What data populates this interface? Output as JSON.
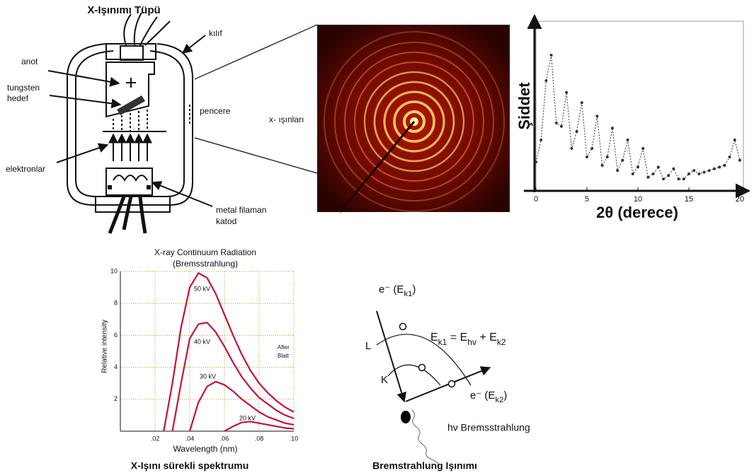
{
  "tube": {
    "title": "X-Işınımı Tüpü",
    "labels": [
      "kılıf",
      "anot",
      "tungsten",
      "hedef",
      "pencere",
      "elektronlar",
      "metal filaman",
      "katod"
    ]
  },
  "diffraction": {
    "label": "x- ışınları"
  },
  "xrd": {
    "type": "scatter",
    "ylabel": "Şiddet",
    "xlabel": "2θ (derece)",
    "color": "#333333",
    "xlim": [
      0,
      20
    ],
    "ylim": [
      0,
      100
    ],
    "xticks": [
      0,
      5,
      10,
      15,
      20
    ],
    "x": [
      0,
      0.5,
      1,
      1.5,
      2,
      2.5,
      3,
      3.5,
      4,
      4.5,
      5,
      5.5,
      6,
      6.5,
      7,
      7.5,
      8,
      8.5,
      9,
      9.5,
      10,
      10.5,
      11,
      11.5,
      12,
      12.5,
      13,
      13.5,
      14,
      14.5,
      15,
      15.5,
      16,
      16.5,
      17,
      17.5,
      18,
      18.5,
      19,
      19.5,
      20
    ],
    "values": [
      17,
      30,
      65,
      80,
      40,
      38,
      58,
      25,
      35,
      52,
      20,
      25,
      44,
      15,
      20,
      37,
      12,
      18,
      30,
      10,
      14,
      25,
      8,
      10,
      14,
      7,
      9,
      13,
      7,
      7,
      10,
      12,
      10,
      11,
      12,
      13,
      14,
      15,
      20,
      30,
      18
    ]
  },
  "continuum": {
    "type": "line",
    "title": [
      "X-ray Continuum Radiation",
      "(Bremsstrahlung)"
    ],
    "xlabel": "Wavelength (nm)",
    "ylabel": "Relative intensity",
    "annotation": [
      "After",
      "Blatt"
    ],
    "xlim": [
      0,
      0.1
    ],
    "ylim": [
      0,
      10
    ],
    "xticks": [
      {
        "value": 0.02,
        "label": ".02"
      },
      {
        "value": 0.04,
        "label": ".04"
      },
      {
        "value": 0.06,
        "label": ".06"
      },
      {
        "value": 0.08,
        "label": ".08"
      },
      {
        "value": 0.1,
        "label": ".10"
      }
    ],
    "yticks": [
      2,
      4,
      6,
      8,
      10
    ],
    "x": [
      0.025,
      0.03,
      0.035,
      0.04,
      0.045,
      0.05,
      0.055,
      0.06,
      0.065,
      0.07,
      0.075,
      0.08,
      0.085,
      0.09,
      0.095,
      0.1
    ],
    "series": [
      {
        "name": "50 kV",
        "color": "#c0143c",
        "values": [
          0,
          3,
          6.5,
          9,
          9.9,
          9.6,
          8.6,
          7.3,
          6,
          4.8,
          3.8,
          3,
          2.4,
          1.9,
          1.5,
          1.2
        ]
      },
      {
        "name": "40 kV",
        "color": "#c0143c",
        "values": [
          null,
          0,
          3,
          5.8,
          6.7,
          6.8,
          6.2,
          5.3,
          4.3,
          3.4,
          2.7,
          2.1,
          1.7,
          1.3,
          1,
          0.8
        ]
      },
      {
        "name": "30 kV",
        "color": "#c0143c",
        "values": [
          null,
          null,
          null,
          0,
          1.8,
          2.8,
          3.1,
          2.9,
          2.5,
          2,
          1.6,
          1.2,
          0.9,
          0.7,
          0.5,
          0.4
        ]
      },
      {
        "name": "20 kV",
        "color": "#c0143c",
        "values": [
          null,
          null,
          null,
          null,
          null,
          null,
          null,
          0,
          0.3,
          0.55,
          0.6,
          0.5,
          0.4,
          0.3,
          0.2,
          0.15
        ]
      }
    ]
  },
  "bremsstrahlung": {
    "incoming": [
      "e⁻ (E",
      "k1",
      ")"
    ],
    "shell_l": "L",
    "shell_k": "K",
    "equation": [
      "E",
      "k1",
      " = E",
      "hν",
      " + E",
      "k2"
    ],
    "outgoing": [
      "e⁻ (E",
      "k2",
      ")"
    ],
    "photon": "hν Bremsstrahlung"
  },
  "captions": [
    "X-Işını sürekli spektrumu",
    "Bremstrahlung Işınımı"
  ]
}
